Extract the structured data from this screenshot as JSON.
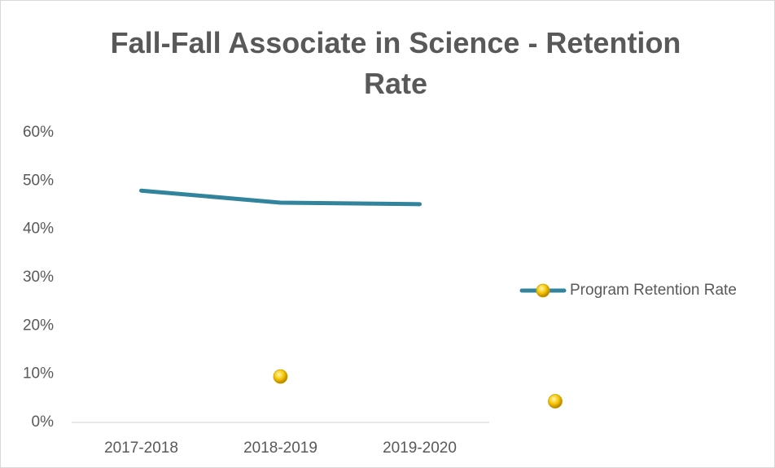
{
  "chart_data": {
    "type": "line",
    "title": "Fall-Fall Associate in Science - Retention Rate",
    "categories": [
      "2017-2018",
      "2018-2019",
      "2019-2020"
    ],
    "series": [
      {
        "name": "Program Retention Rate",
        "color": "#31849b",
        "values": [
          48,
          45.5,
          45.2
        ]
      },
      {
        "color": "#f5c400",
        "values": [
          null,
          9.5,
          null
        ]
      }
    ],
    "ylim": [
      0,
      60
    ],
    "yticks": [
      {
        "value": 0,
        "label": "0%"
      },
      {
        "value": 10,
        "label": "10%"
      },
      {
        "value": 20,
        "label": "20%"
      },
      {
        "value": 30,
        "label": "30%"
      },
      {
        "value": 40,
        "label": "40%"
      },
      {
        "value": 50,
        "label": "50%"
      },
      {
        "value": 60,
        "label": "60%"
      }
    ],
    "grid": false,
    "legend": "right"
  }
}
